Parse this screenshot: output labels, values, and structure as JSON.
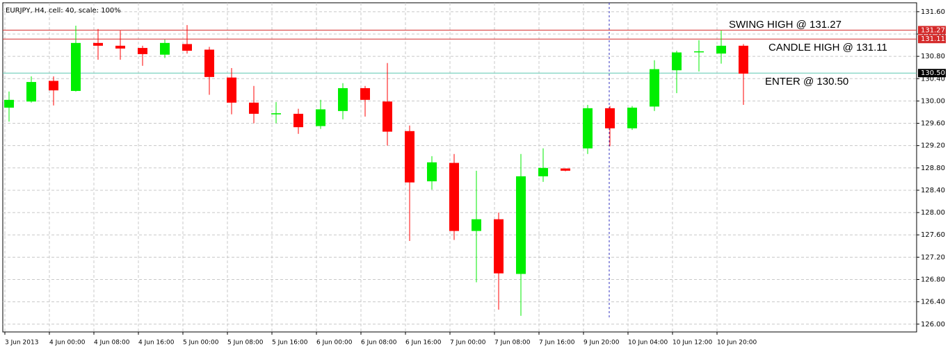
{
  "chart_data": {
    "type": "candlestick",
    "header": "EURJPY, H4, cell: 40, scale: 100%",
    "categories": [
      "3 Jun 2013",
      null,
      "4 Jun 00:00",
      null,
      "4 Jun 08:00",
      null,
      "4 Jun 16:00",
      null,
      "5 Jun 00:00",
      null,
      "5 Jun 08:00",
      null,
      "5 Jun 16:00",
      null,
      "6 Jun 00:00",
      null,
      "6 Jun 08:00",
      null,
      "6 Jun 16:00",
      null,
      "7 Jun 00:00",
      null,
      "7 Jun 08:00",
      null,
      "7 Jun 16:00",
      null,
      "9 Jun 20:00",
      null,
      "10 Jun 04:00",
      null,
      "10 Jun 12:00",
      null,
      "10 Jun 20:00",
      null
    ],
    "open": [
      129.88,
      129.99,
      130.36,
      130.18,
      131.04,
      130.99,
      130.95,
      130.83,
      131.02,
      130.92,
      130.42,
      129.97,
      129.76,
      129.77,
      129.55,
      129.82,
      130.23,
      129.99,
      129.46,
      128.56,
      128.89,
      127.67,
      127.88,
      126.9,
      128.65,
      128.79,
      129.15,
      129.87,
      129.51,
      129.9,
      130.55,
      130.88,
      130.85,
      130.99
    ],
    "high": [
      130.17,
      130.44,
      130.44,
      131.35,
      131.29,
      131.26,
      130.99,
      131.1,
      131.36,
      130.97,
      130.59,
      130.27,
      129.98,
      129.86,
      130.02,
      130.32,
      130.27,
      130.68,
      129.56,
      129.01,
      129.05,
      128.75,
      128.0,
      129.05,
      129.15,
      128.79,
      129.93,
      129.91,
      129.91,
      130.73,
      130.9,
      131.09,
      131.26,
      131.02
    ],
    "low": [
      129.63,
      129.97,
      129.92,
      130.17,
      130.74,
      130.74,
      130.63,
      130.77,
      130.85,
      130.11,
      129.76,
      129.6,
      129.6,
      129.41,
      129.5,
      129.67,
      129.72,
      129.2,
      127.49,
      128.41,
      127.51,
      126.75,
      126.26,
      126.15,
      128.55,
      128.74,
      129.05,
      129.19,
      129.48,
      129.82,
      130.14,
      130.53,
      130.67,
      129.93
    ],
    "close": [
      130.02,
      130.34,
      130.19,
      131.04,
      130.99,
      130.94,
      130.84,
      131.04,
      130.9,
      130.43,
      129.97,
      129.77,
      129.78,
      129.53,
      129.85,
      130.23,
      130.02,
      129.45,
      128.54,
      128.9,
      127.67,
      127.88,
      126.91,
      128.65,
      128.8,
      128.75,
      129.87,
      129.51,
      129.88,
      130.57,
      130.87,
      130.89,
      130.99,
      130.49
    ],
    "up_color": "#00ee00",
    "down_color": "#ff0000",
    "ylim": [
      125.86,
      131.76
    ],
    "yticks": [
      {
        "value": 126,
        "label": "126.00"
      },
      {
        "value": 126.4,
        "label": "126.40"
      },
      {
        "value": 126.8,
        "label": "126.80"
      },
      {
        "value": 127.2,
        "label": "127.20"
      },
      {
        "value": 127.6,
        "label": "127.60"
      },
      {
        "value": 128,
        "label": "128.00"
      },
      {
        "value": 128.4,
        "label": "128.40"
      },
      {
        "value": 128.8,
        "label": "128.80"
      },
      {
        "value": 129.2,
        "label": "129.20"
      },
      {
        "value": 129.6,
        "label": "129.60"
      },
      {
        "value": 130,
        "label": "130.00"
      },
      {
        "value": 130.4,
        "label": "130.40"
      },
      {
        "value": 130.8,
        "label": "130.80"
      },
      {
        "value": 131.2,
        "label": "131.20"
      },
      {
        "value": 131.6,
        "label": "131.60"
      }
    ],
    "grid": true,
    "hlines": [
      {
        "value": 131.27,
        "label": "131.27",
        "color": "#d42a2a",
        "text": "SWING HIGH @ 131.27"
      },
      {
        "value": 131.11,
        "label": "131.11",
        "color": "#d42a2a",
        "text": "CANDLE HIGH @ 131.11"
      },
      {
        "value": 130.5,
        "label": "130.50",
        "color": "#5cc8b0",
        "text": "ENTER @ 130.50"
      }
    ]
  }
}
